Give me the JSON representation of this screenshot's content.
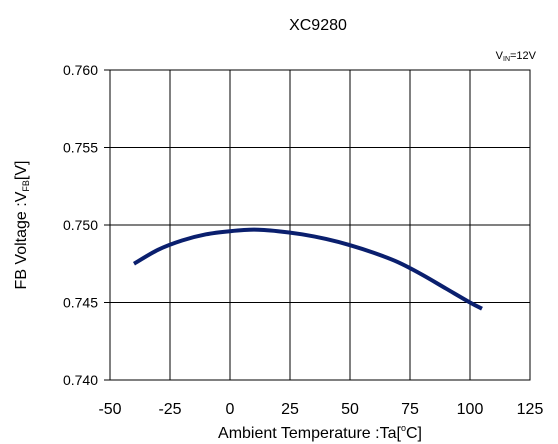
{
  "chart_data": {
    "type": "line",
    "title": "XC9280",
    "annotation": {
      "main": "V",
      "sub": "IN",
      "tail": "=12V"
    },
    "xlabel": {
      "main": "Ambient Temperature :Ta[",
      "deg": "o",
      "tail": "C]"
    },
    "ylabel": {
      "main": "FB Voltage :V",
      "sub": "FB",
      "tail": "[V]"
    },
    "xlim": [
      -50,
      125
    ],
    "ylim": [
      0.74,
      0.76
    ],
    "x_ticks": [
      -50,
      -25,
      0,
      25,
      50,
      75,
      100,
      125
    ],
    "x_tick_labels": [
      "-50",
      "-25",
      "0",
      "25",
      "50",
      "75",
      "100",
      "125"
    ],
    "y_ticks": [
      0.74,
      0.745,
      0.75,
      0.755,
      0.76
    ],
    "y_tick_labels": [
      "0.740",
      "0.745",
      "0.750",
      "0.755",
      "0.760"
    ],
    "grid": true,
    "series": [
      {
        "color": "#0a1f6e",
        "x": [
          -40,
          -30,
          -20,
          -10,
          0,
          10,
          20,
          30,
          40,
          50,
          60,
          70,
          80,
          90,
          100,
          105
        ],
        "y": [
          0.7475,
          0.7484,
          0.749,
          0.7494,
          0.7496,
          0.7497,
          0.7496,
          0.7494,
          0.7491,
          0.7487,
          0.7482,
          0.7476,
          0.7468,
          0.7459,
          0.745,
          0.7446
        ]
      }
    ]
  }
}
